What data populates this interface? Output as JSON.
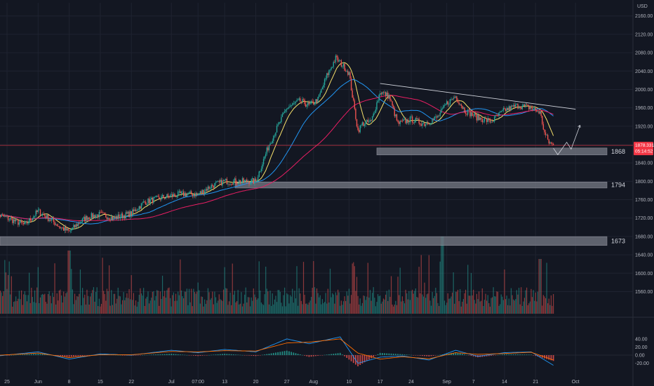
{
  "chart_data": {
    "type": "candlestick",
    "currency": "USD",
    "y_ticks": [
      2160,
      2120,
      2080,
      2040,
      2000,
      1960,
      1920,
      1880,
      1840,
      1800,
      1760,
      1720,
      1680,
      1640,
      1600,
      1560
    ],
    "ylim": [
      1540,
      2180
    ],
    "x_labels": [
      "25",
      "Jun",
      "8",
      "15",
      "22",
      "Jul",
      "07:00",
      "13",
      "20",
      "27",
      "Aug",
      "10",
      "17",
      "24",
      "Sep",
      "7",
      "14",
      "21",
      "Oct"
    ],
    "last_price": "1878.331",
    "countdown": "05:14:52",
    "price_line": 1878.3,
    "zones": [
      {
        "label": "1868",
        "low": 1862,
        "high": 1868
      },
      {
        "label": "1794",
        "low": 1790,
        "high": 1794
      },
      {
        "label": "1673",
        "low": 1665,
        "high": 1675
      }
    ],
    "trendline": [
      {
        "date": "Aug 17",
        "price": 2013
      },
      {
        "date": "Sep 30",
        "price": 1957
      }
    ],
    "projection": [
      {
        "date": "Sep 25",
        "price": 1872
      },
      {
        "date": "Sep 26",
        "price": 1858
      },
      {
        "date": "Sep 28",
        "price": 1885
      },
      {
        "date": "Sep 29",
        "price": 1870
      },
      {
        "date": "Oct 1",
        "price": 1922
      }
    ],
    "price_path": [
      {
        "date": "May 22",
        "price": 1730
      },
      {
        "date": "May 25",
        "price": 1720
      },
      {
        "date": "May 29",
        "price": 1705
      },
      {
        "date": "Jun 1",
        "price": 1735
      },
      {
        "date": "Jun 4",
        "price": 1715
      },
      {
        "date": "Jun 6",
        "price": 1700
      },
      {
        "date": "Jun 8",
        "price": 1690
      },
      {
        "date": "Jun 10",
        "price": 1708
      },
      {
        "date": "Jun 12",
        "price": 1722
      },
      {
        "date": "Jun 15",
        "price": 1728
      },
      {
        "date": "Jun 18",
        "price": 1720
      },
      {
        "date": "Jun 22",
        "price": 1730
      },
      {
        "date": "Jun 25",
        "price": 1755
      },
      {
        "date": "Jun 29",
        "price": 1765
      },
      {
        "date": "Jul 3",
        "price": 1772
      },
      {
        "date": "Jul 7",
        "price": 1772
      },
      {
        "date": "Jul 10",
        "price": 1790
      },
      {
        "date": "Jul 13",
        "price": 1800
      },
      {
        "date": "Jul 17",
        "price": 1800
      },
      {
        "date": "Jul 20",
        "price": 1800
      },
      {
        "date": "Jul 23",
        "price": 1880
      },
      {
        "date": "Jul 25",
        "price": 1920
      },
      {
        "date": "Jul 27",
        "price": 1960
      },
      {
        "date": "Jul 30",
        "price": 1975
      },
      {
        "date": "Aug 1",
        "price": 1965
      },
      {
        "date": "Aug 3",
        "price": 1978
      },
      {
        "date": "Aug 5",
        "price": 2030
      },
      {
        "date": "Aug 7",
        "price": 2068
      },
      {
        "date": "Aug 9",
        "price": 2048
      },
      {
        "date": "Aug 10",
        "price": 2035
      },
      {
        "date": "Aug 11",
        "price": 1970
      },
      {
        "date": "Aug 12",
        "price": 1910
      },
      {
        "date": "Aug 13",
        "price": 1925
      },
      {
        "date": "Aug 15",
        "price": 1930
      },
      {
        "date": "Aug 17",
        "price": 1995
      },
      {
        "date": "Aug 19",
        "price": 1985
      },
      {
        "date": "Aug 21",
        "price": 1925
      },
      {
        "date": "Aug 24",
        "price": 1935
      },
      {
        "date": "Aug 27",
        "price": 1925
      },
      {
        "date": "Aug 30",
        "price": 1940
      },
      {
        "date": "Sep 1",
        "price": 1970
      },
      {
        "date": "Sep 3",
        "price": 1985
      },
      {
        "date": "Sep 5",
        "price": 1955
      },
      {
        "date": "Sep 8",
        "price": 1938
      },
      {
        "date": "Sep 11",
        "price": 1930
      },
      {
        "date": "Sep 14",
        "price": 1955
      },
      {
        "date": "Sep 17",
        "price": 1965
      },
      {
        "date": "Sep 20",
        "price": 1960
      },
      {
        "date": "Sep 22",
        "price": 1950
      },
      {
        "date": "Sep 23",
        "price": 1905
      },
      {
        "date": "Sep 24",
        "price": 1885
      },
      {
        "date": "Sep 25",
        "price": 1878
      }
    ],
    "macd_ticks": [
      40,
      20,
      0,
      -20
    ],
    "macd_ylim": [
      -60,
      55
    ],
    "macd_line": [
      {
        "date": "May 22",
        "value": -3
      },
      {
        "date": "Jun 1",
        "value": 8
      },
      {
        "date": "Jun 8",
        "value": -10
      },
      {
        "date": "Jun 15",
        "value": 3
      },
      {
        "date": "Jun 22",
        "value": 0
      },
      {
        "date": "Jul 1",
        "value": 12
      },
      {
        "date": "Jul 7",
        "value": 6
      },
      {
        "date": "Jul 13",
        "value": 14
      },
      {
        "date": "Jul 20",
        "value": 8
      },
      {
        "date": "Jul 27",
        "value": 40
      },
      {
        "date": "Aug 1",
        "value": 28
      },
      {
        "date": "Aug 8",
        "value": 45
      },
      {
        "date": "Aug 12",
        "value": -20
      },
      {
        "date": "Aug 17",
        "value": -5
      },
      {
        "date": "Aug 22",
        "value": -2
      },
      {
        "date": "Aug 28",
        "value": -12
      },
      {
        "date": "Sep 3",
        "value": 12
      },
      {
        "date": "Sep 8",
        "value": -3
      },
      {
        "date": "Sep 14",
        "value": 6
      },
      {
        "date": "Sep 20",
        "value": 8
      },
      {
        "date": "Sep 25",
        "value": -25
      }
    ],
    "signal_line": [
      {
        "date": "May 22",
        "value": -1
      },
      {
        "date": "Jun 1",
        "value": 5
      },
      {
        "date": "Jun 8",
        "value": -6
      },
      {
        "date": "Jun 15",
        "value": 1
      },
      {
        "date": "Jun 22",
        "value": 1
      },
      {
        "date": "Jul 1",
        "value": 9
      },
      {
        "date": "Jul 7",
        "value": 8
      },
      {
        "date": "Jul 13",
        "value": 11
      },
      {
        "date": "Jul 20",
        "value": 10
      },
      {
        "date": "Jul 27",
        "value": 30
      },
      {
        "date": "Aug 1",
        "value": 32
      },
      {
        "date": "Aug 8",
        "value": 40
      },
      {
        "date": "Aug 12",
        "value": 5
      },
      {
        "date": "Aug 17",
        "value": -10
      },
      {
        "date": "Aug 22",
        "value": -4
      },
      {
        "date": "Aug 28",
        "value": -9
      },
      {
        "date": "Sep 3",
        "value": 6
      },
      {
        "date": "Sep 8",
        "value": 2
      },
      {
        "date": "Sep 14",
        "value": 4
      },
      {
        "date": "Sep 20",
        "value": 7
      },
      {
        "date": "Sep 25",
        "value": -12
      }
    ],
    "colors": {
      "background": "#131722",
      "up": "#26a69a",
      "down": "#ef5350",
      "zone": "#787b86",
      "price_line": "#f23645",
      "ma_fast": "#f7e16b",
      "ma_mid": "#2196f3",
      "ma_slow": "#e91e63",
      "macd": "#2196f3",
      "signal": "#ff6d00",
      "trendline": "#d1d4dc"
    }
  }
}
